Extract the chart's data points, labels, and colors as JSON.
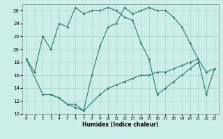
{
  "xlabel": "Humidex (Indice chaleur)",
  "background_color": "#cceee8",
  "grid_color": "#aad4cc",
  "line_color": "#2a7a6a",
  "xlim": [
    -0.5,
    23.5
  ],
  "ylim": [
    10,
    27
  ],
  "xticks": [
    0,
    1,
    2,
    3,
    4,
    5,
    6,
    7,
    8,
    9,
    10,
    11,
    12,
    13,
    14,
    15,
    16,
    17,
    18,
    19,
    20,
    21,
    22,
    23
  ],
  "yticks": [
    10,
    12,
    14,
    16,
    18,
    20,
    22,
    24,
    26
  ],
  "line1_x": [
    0,
    1,
    2,
    3,
    4,
    5,
    6,
    7,
    8,
    9,
    10,
    11,
    12,
    13,
    14,
    15,
    16,
    17,
    18,
    19,
    20,
    21
  ],
  "line1_y": [
    18.5,
    16.5,
    22,
    20,
    24,
    23.5,
    26.5,
    25.5,
    26,
    26,
    26.5,
    26,
    25,
    24.5,
    21,
    18.5,
    13,
    14,
    15,
    16,
    17,
    18
  ],
  "line2_x": [
    0,
    2,
    3,
    4,
    5,
    6,
    7,
    8,
    9,
    10,
    11,
    12,
    13,
    14,
    15,
    16,
    17,
    18,
    19,
    20,
    21,
    22,
    23
  ],
  "line2_y": [
    18.5,
    13,
    13,
    12.5,
    11.5,
    11,
    10.5,
    16,
    20.5,
    23.5,
    24,
    26.5,
    25.5,
    26,
    26.5,
    26,
    26,
    25,
    23.5,
    21,
    18.5,
    13,
    17
  ],
  "line3_x": [
    2,
    3,
    4,
    5,
    6,
    7,
    9,
    10,
    11,
    12,
    13,
    14,
    15,
    16,
    17,
    18,
    19,
    20,
    21,
    22,
    23
  ],
  "line3_y": [
    13,
    13,
    12.5,
    11.5,
    11.5,
    10.5,
    13,
    14,
    14.5,
    15,
    15.5,
    16,
    16,
    16.5,
    16.5,
    17,
    17.5,
    18,
    18.5,
    16.5,
    17
  ]
}
